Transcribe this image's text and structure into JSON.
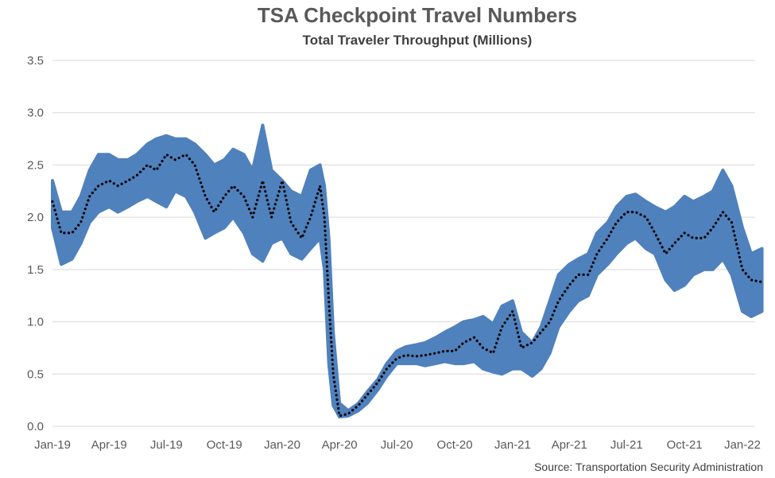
{
  "chart_data": {
    "type": "line",
    "title": "TSA Checkpoint Travel Numbers",
    "subtitle": "Total Traveler Throughput (Millions)",
    "source": "Source: Transportation Security Administration",
    "xlabel": "",
    "ylabel": "",
    "ylim": [
      0,
      3.5
    ],
    "y_ticks": [
      "0.0",
      "0.5",
      "1.0",
      "1.5",
      "2.0",
      "2.5",
      "3.0",
      "3.5"
    ],
    "x_ticks": [
      "Jan-19",
      "Apr-19",
      "Jul-19",
      "Oct-19",
      "Jan-20",
      "Apr-20",
      "Jul-20",
      "Oct-20",
      "Jan-21",
      "Apr-21",
      "Jul-21",
      "Oct-21",
      "Jan-22"
    ],
    "grid": true,
    "legend": "none",
    "colors": {
      "daily": "#4f81bd",
      "average": "#000000",
      "grid": "#d9d9d9"
    },
    "series": [
      {
        "style": "solid-band",
        "x": [
          "2019-01-01",
          "2019-01-15",
          "2019-02-01",
          "2019-02-15",
          "2019-03-01",
          "2019-03-15",
          "2019-04-01",
          "2019-04-15",
          "2019-05-01",
          "2019-05-15",
          "2019-06-01",
          "2019-06-15",
          "2019-07-01",
          "2019-07-15",
          "2019-08-01",
          "2019-08-15",
          "2019-09-01",
          "2019-09-15",
          "2019-10-01",
          "2019-10-15",
          "2019-11-01",
          "2019-11-15",
          "2019-12-01",
          "2019-12-15",
          "2020-01-01",
          "2020-01-15",
          "2020-02-01",
          "2020-02-15",
          "2020-03-01",
          "2020-03-08",
          "2020-03-15",
          "2020-03-22",
          "2020-04-01",
          "2020-04-15",
          "2020-05-01",
          "2020-05-15",
          "2020-06-01",
          "2020-06-15",
          "2020-07-01",
          "2020-07-15",
          "2020-08-01",
          "2020-08-15",
          "2020-09-01",
          "2020-09-15",
          "2020-10-01",
          "2020-10-15",
          "2020-11-01",
          "2020-11-15",
          "2020-12-01",
          "2020-12-15",
          "2021-01-01",
          "2021-01-15",
          "2021-02-01",
          "2021-02-15",
          "2021-03-01",
          "2021-03-15",
          "2021-04-01",
          "2021-04-15",
          "2021-05-01",
          "2021-05-15",
          "2021-06-01",
          "2021-06-15",
          "2021-07-01",
          "2021-07-15",
          "2021-08-01",
          "2021-08-15",
          "2021-09-01",
          "2021-09-15",
          "2021-10-01",
          "2021-10-15",
          "2021-11-01",
          "2021-11-15",
          "2021-12-01",
          "2021-12-15",
          "2022-01-01",
          "2022-01-15",
          "2022-02-01"
        ],
        "high": [
          2.35,
          2.05,
          2.05,
          2.2,
          2.45,
          2.6,
          2.6,
          2.55,
          2.55,
          2.6,
          2.7,
          2.75,
          2.78,
          2.75,
          2.75,
          2.7,
          2.6,
          2.5,
          2.55,
          2.65,
          2.6,
          2.45,
          2.88,
          2.45,
          2.35,
          2.25,
          2.2,
          2.45,
          2.5,
          2.3,
          1.8,
          0.9,
          0.22,
          0.15,
          0.22,
          0.33,
          0.45,
          0.6,
          0.72,
          0.76,
          0.78,
          0.8,
          0.85,
          0.9,
          0.95,
          1.0,
          1.02,
          1.05,
          0.98,
          1.15,
          1.2,
          0.9,
          0.8,
          0.95,
          1.2,
          1.45,
          1.55,
          1.6,
          1.65,
          1.85,
          1.95,
          2.1,
          2.2,
          2.22,
          2.15,
          2.1,
          2.05,
          2.1,
          2.2,
          2.15,
          2.2,
          2.25,
          2.45,
          2.3,
          1.9,
          1.65,
          1.7
        ],
        "low": [
          1.9,
          1.55,
          1.6,
          1.75,
          1.95,
          2.05,
          2.1,
          2.05,
          2.1,
          2.15,
          2.2,
          2.15,
          2.1,
          2.25,
          2.2,
          2.05,
          1.8,
          1.85,
          1.9,
          2.0,
          1.85,
          1.65,
          1.58,
          1.75,
          1.8,
          1.65,
          1.6,
          1.7,
          1.8,
          1.5,
          0.6,
          0.2,
          0.09,
          0.1,
          0.15,
          0.22,
          0.35,
          0.48,
          0.6,
          0.6,
          0.6,
          0.58,
          0.6,
          0.62,
          0.6,
          0.6,
          0.62,
          0.55,
          0.52,
          0.5,
          0.55,
          0.55,
          0.48,
          0.55,
          0.7,
          0.95,
          1.1,
          1.2,
          1.25,
          1.45,
          1.55,
          1.65,
          1.75,
          1.8,
          1.7,
          1.65,
          1.4,
          1.3,
          1.35,
          1.45,
          1.5,
          1.5,
          1.6,
          1.45,
          1.1,
          1.05,
          1.1
        ]
      },
      {
        "style": "dotted",
        "x": [
          "2019-01-01",
          "2019-01-15",
          "2019-02-01",
          "2019-02-15",
          "2019-03-01",
          "2019-03-15",
          "2019-04-01",
          "2019-04-15",
          "2019-05-01",
          "2019-05-15",
          "2019-06-01",
          "2019-06-15",
          "2019-07-01",
          "2019-07-15",
          "2019-08-01",
          "2019-08-15",
          "2019-09-01",
          "2019-09-15",
          "2019-10-01",
          "2019-10-15",
          "2019-11-01",
          "2019-11-15",
          "2019-12-01",
          "2019-12-15",
          "2020-01-01",
          "2020-01-15",
          "2020-02-01",
          "2020-02-15",
          "2020-03-01",
          "2020-03-08",
          "2020-03-15",
          "2020-03-22",
          "2020-04-01",
          "2020-04-15",
          "2020-05-01",
          "2020-05-15",
          "2020-06-01",
          "2020-06-15",
          "2020-07-01",
          "2020-07-15",
          "2020-08-01",
          "2020-08-15",
          "2020-09-01",
          "2020-09-15",
          "2020-10-01",
          "2020-10-15",
          "2020-11-01",
          "2020-11-15",
          "2020-12-01",
          "2020-12-15",
          "2021-01-01",
          "2021-01-15",
          "2021-02-01",
          "2021-02-15",
          "2021-03-01",
          "2021-03-15",
          "2021-04-01",
          "2021-04-15",
          "2021-05-01",
          "2021-05-15",
          "2021-06-01",
          "2021-06-15",
          "2021-07-01",
          "2021-07-15",
          "2021-08-01",
          "2021-08-15",
          "2021-09-01",
          "2021-09-15",
          "2021-10-01",
          "2021-10-15",
          "2021-11-01",
          "2021-11-15",
          "2021-12-01",
          "2021-12-15",
          "2022-01-01",
          "2022-01-15",
          "2022-02-01"
        ],
        "values": [
          2.15,
          1.85,
          1.85,
          1.95,
          2.2,
          2.3,
          2.35,
          2.3,
          2.35,
          2.4,
          2.5,
          2.45,
          2.6,
          2.55,
          2.6,
          2.5,
          2.2,
          2.05,
          2.2,
          2.3,
          2.2,
          2.0,
          2.35,
          2.0,
          2.35,
          1.95,
          1.8,
          2.0,
          2.3,
          2.0,
          1.2,
          0.5,
          0.1,
          0.12,
          0.2,
          0.3,
          0.42,
          0.55,
          0.65,
          0.68,
          0.67,
          0.68,
          0.7,
          0.72,
          0.72,
          0.8,
          0.85,
          0.75,
          0.7,
          0.95,
          1.1,
          0.75,
          0.8,
          0.9,
          1.0,
          1.2,
          1.35,
          1.45,
          1.45,
          1.65,
          1.8,
          1.95,
          2.05,
          2.05,
          2.0,
          1.85,
          1.65,
          1.75,
          1.85,
          1.8,
          1.8,
          1.9,
          2.05,
          1.95,
          1.5,
          1.4,
          1.38
        ]
      }
    ]
  }
}
